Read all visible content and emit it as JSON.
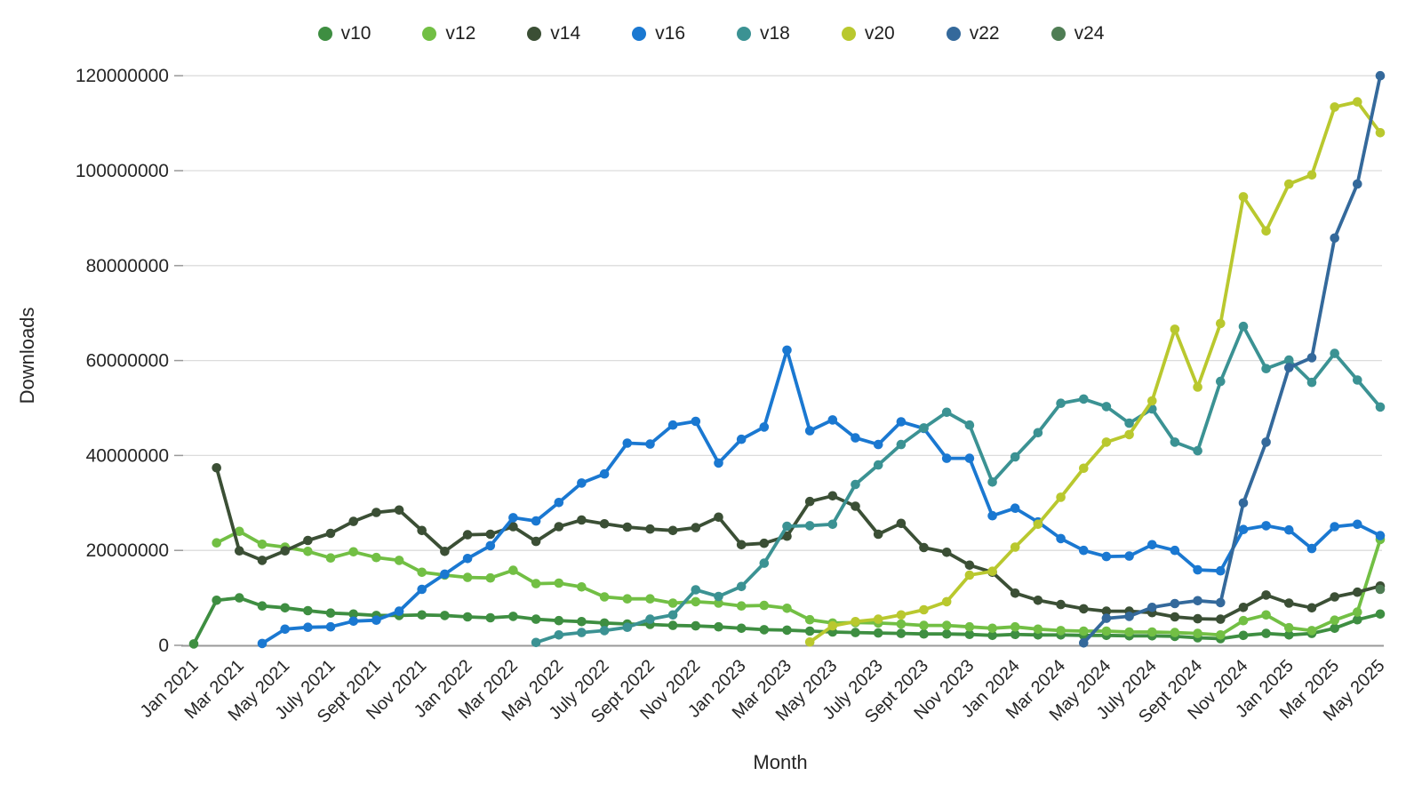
{
  "chart_data": {
    "type": "line",
    "xlabel": "Month",
    "ylabel": "Downloads",
    "legend_position": "top",
    "grid": "horizontal",
    "values_unit": "millions",
    "ylim_millions": [
      0,
      120
    ],
    "y_tick_values_millions": [
      0,
      20,
      40,
      60,
      80,
      100,
      120
    ],
    "y_tick_labels": [
      "0",
      "20000000",
      "40000000",
      "60000000",
      "80000000",
      "100000000",
      "120000000"
    ],
    "x_tick_labels": [
      "Jan 2021",
      "Mar 2021",
      "May 2021",
      "July 2021",
      "Sept 2021",
      "Nov 2021",
      "Jan 2022",
      "Mar 2022",
      "May 2022",
      "July 2022",
      "Sept 2022",
      "Nov 2022",
      "Jan 2023",
      "Mar 2023",
      "May 2023",
      "July 2023",
      "Sept 2023",
      "Nov 2023",
      "Jan 2024",
      "Mar 2024",
      "May 2024",
      "July 2024",
      "Sept 2024",
      "Nov 2024",
      "Jan 2025",
      "Mar 2025",
      "May 2025"
    ],
    "x_months": [
      "Jan 2021",
      "Feb 2021",
      "Mar 2021",
      "Apr 2021",
      "May 2021",
      "June 2021",
      "July 2021",
      "Aug 2021",
      "Sept 2021",
      "Oct 2021",
      "Nov 2021",
      "Dec 2021",
      "Jan 2022",
      "Feb 2022",
      "Mar 2022",
      "Apr 2022",
      "May 2022",
      "June 2022",
      "July 2022",
      "Aug 2022",
      "Sept 2022",
      "Oct 2022",
      "Nov 2022",
      "Dec 2022",
      "Jan 2023",
      "Feb 2023",
      "Mar 2023",
      "Apr 2023",
      "May 2023",
      "June 2023",
      "July 2023",
      "Aug 2023",
      "Sept 2023",
      "Oct 2023",
      "Nov 2023",
      "Dec 2023",
      "Jan 2024",
      "Feb 2024",
      "Mar 2024",
      "Apr 2024",
      "May 2024",
      "June 2024",
      "July 2024",
      "Aug 2024",
      "Sept 2024",
      "Oct 2024",
      "Nov 2024",
      "Dec 2024",
      "Jan 2025",
      "Feb 2025",
      "Mar 2025",
      "Apr 2025",
      "May 2025"
    ],
    "series": [
      {
        "name": "v10",
        "color": "#3e8e41",
        "values_millions": [
          0.3,
          9.5,
          10.0,
          8.3,
          7.9,
          7.3,
          6.8,
          6.6,
          6.3,
          6.3,
          6.4,
          6.3,
          6.0,
          5.8,
          6.1,
          5.5,
          5.2,
          5.0,
          4.7,
          4.5,
          4.4,
          4.2,
          4.1,
          3.9,
          3.6,
          3.3,
          3.2,
          3.0,
          2.8,
          2.7,
          2.6,
          2.5,
          2.4,
          2.4,
          2.3,
          2.1,
          2.3,
          2.2,
          2.2,
          2.1,
          2.1,
          2.0,
          2.0,
          1.9,
          1.6,
          1.4,
          2.1,
          2.5,
          2.2,
          2.5,
          3.6,
          5.4,
          6.6
        ]
      },
      {
        "name": "v12",
        "color": "#72bf44",
        "values_millions": [
          null,
          21.6,
          24.0,
          21.3,
          20.7,
          19.8,
          18.4,
          19.7,
          18.5,
          17.9,
          15.4,
          14.8,
          14.3,
          14.2,
          15.8,
          13.0,
          13.1,
          12.3,
          10.2,
          9.8,
          9.8,
          8.9,
          9.2,
          8.9,
          8.3,
          8.4,
          7.8,
          5.4,
          4.7,
          4.8,
          4.7,
          4.5,
          4.2,
          4.2,
          3.9,
          3.6,
          3.9,
          3.4,
          3.1,
          3.0,
          3.0,
          2.8,
          2.8,
          2.7,
          2.5,
          2.2,
          5.2,
          6.4,
          3.7,
          3.1,
          5.3,
          7.0,
          22.3
        ]
      },
      {
        "name": "v14",
        "color": "#3b4f35",
        "values_millions": [
          null,
          37.4,
          19.9,
          17.9,
          19.9,
          22.1,
          23.6,
          26.1,
          28.0,
          28.5,
          24.2,
          19.8,
          23.3,
          23.4,
          25.0,
          21.9,
          25.0,
          26.4,
          25.6,
          24.9,
          24.5,
          24.2,
          24.8,
          27.0,
          21.2,
          21.5,
          23.0,
          30.3,
          31.5,
          29.3,
          23.4,
          25.7,
          20.6,
          19.6,
          16.9,
          15.4,
          11.0,
          9.5,
          8.6,
          7.7,
          7.2,
          7.2,
          6.9,
          6.0,
          5.6,
          5.5,
          8.0,
          10.6,
          8.9,
          7.9,
          10.2,
          11.2,
          12.5
        ]
      },
      {
        "name": "v16",
        "color": "#1a78d1",
        "values_millions": [
          null,
          null,
          null,
          0.4,
          3.4,
          3.8,
          3.9,
          5.1,
          5.3,
          7.2,
          11.8,
          15.0,
          18.3,
          21.0,
          26.9,
          26.2,
          30.1,
          34.2,
          36.1,
          42.6,
          42.4,
          46.4,
          47.2,
          38.4,
          43.4,
          46.0,
          62.2,
          45.2,
          47.5,
          43.7,
          42.3,
          47.1,
          45.7,
          39.4,
          39.4,
          27.3,
          28.9,
          26.0,
          22.5,
          20.0,
          18.7,
          18.8,
          21.2,
          20.0,
          15.9,
          15.7,
          24.4,
          25.2,
          24.3,
          20.4,
          25.0,
          25.5,
          23.1
        ]
      },
      {
        "name": "v18",
        "color": "#3b9293",
        "values_millions": [
          null,
          null,
          null,
          null,
          null,
          null,
          null,
          null,
          null,
          null,
          null,
          null,
          null,
          null,
          null,
          0.6,
          2.2,
          2.7,
          3.1,
          3.8,
          5.5,
          6.4,
          11.7,
          10.3,
          12.4,
          17.3,
          25.1,
          25.2,
          25.5,
          33.9,
          38.0,
          42.3,
          45.8,
          49.1,
          46.4,
          34.4,
          39.7,
          44.8,
          51.0,
          51.9,
          50.3,
          46.8,
          49.8,
          42.8,
          41.0,
          55.6,
          67.2,
          58.3,
          60.1,
          55.4,
          61.5,
          55.9,
          50.2
        ]
      },
      {
        "name": "v20",
        "color": "#b9c82e",
        "values_millions": [
          null,
          null,
          null,
          null,
          null,
          null,
          null,
          null,
          null,
          null,
          null,
          null,
          null,
          null,
          null,
          null,
          null,
          null,
          null,
          null,
          null,
          null,
          null,
          null,
          null,
          null,
          null,
          0.7,
          4.1,
          5.0,
          5.5,
          6.4,
          7.5,
          9.2,
          14.8,
          15.6,
          20.7,
          25.5,
          31.2,
          37.3,
          42.8,
          44.4,
          51.5,
          66.6,
          54.4,
          67.8,
          94.5,
          87.3,
          97.2,
          99.1,
          113.4,
          114.5,
          108.0
        ]
      },
      {
        "name": "v22",
        "color": "#34699b",
        "values_millions": [
          null,
          null,
          null,
          null,
          null,
          null,
          null,
          null,
          null,
          null,
          null,
          null,
          null,
          null,
          null,
          null,
          null,
          null,
          null,
          null,
          null,
          null,
          null,
          null,
          null,
          null,
          null,
          null,
          null,
          null,
          null,
          null,
          null,
          null,
          null,
          null,
          null,
          null,
          null,
          0.5,
          5.7,
          6.1,
          8.0,
          8.8,
          9.4,
          9.0,
          30.0,
          42.8,
          58.5,
          60.6,
          85.8,
          97.2,
          120.0
        ]
      },
      {
        "name": "v24",
        "color": "#4f7d54",
        "values_millions": [
          null,
          null,
          null,
          null,
          null,
          null,
          null,
          null,
          null,
          null,
          null,
          null,
          null,
          null,
          null,
          null,
          null,
          null,
          null,
          null,
          null,
          null,
          null,
          null,
          null,
          null,
          null,
          null,
          null,
          null,
          null,
          null,
          null,
          null,
          null,
          null,
          null,
          null,
          null,
          null,
          null,
          null,
          null,
          null,
          null,
          null,
          null,
          null,
          null,
          null,
          null,
          null,
          11.8
        ]
      }
    ],
    "colors": {
      "gridline": "#dcdcdc",
      "axis_line": "#999999",
      "tick_text": "#262626"
    }
  }
}
